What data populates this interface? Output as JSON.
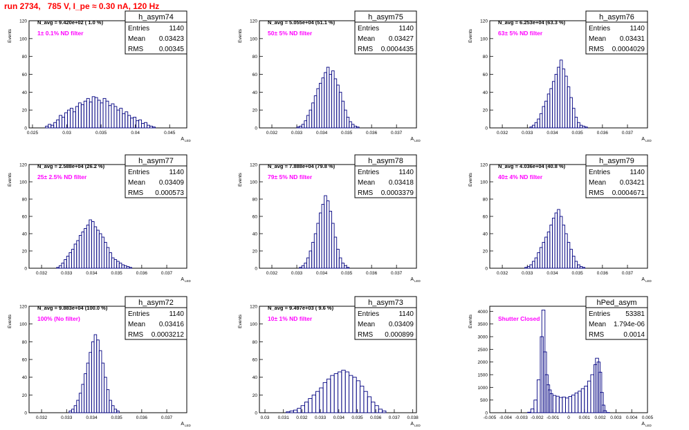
{
  "page": {
    "title": "run 2734,   785 V, I_pe ≈ 0.30 nA, 120 Hz",
    "accent_color": "#ff0000",
    "label_color": "#ff00ff",
    "hist_color": "#000080"
  },
  "chart_data": [
    {
      "type": "histogram",
      "name": "h_asym74",
      "ylabel": "Events",
      "xlabel": "A",
      "xlabel_sub": "LED",
      "ylim": [
        0,
        120
      ],
      "yticks": [
        0,
        20,
        40,
        60,
        80,
        100,
        120
      ],
      "xlim": [
        0.0245,
        0.0475
      ],
      "xticks": [
        0.025,
        0.03,
        0.035,
        0.04,
        0.045
      ],
      "xtick_labels": [
        "0.025",
        "0.03",
        "0.035",
        "0.04",
        "0.045"
      ],
      "navg": "N_avg = 9.420e+02 ( 1.0 %)",
      "filter": "1± 0.1% ND filter",
      "stats": [
        [
          "Entries",
          "1140"
        ],
        [
          "Mean",
          "0.03423"
        ],
        [
          "RMS",
          "0.00345"
        ]
      ],
      "x": [
        0.0271,
        0.0275,
        0.0279,
        0.0283,
        0.0287,
        0.0291,
        0.0295,
        0.0299,
        0.0303,
        0.0307,
        0.0311,
        0.0315,
        0.0319,
        0.0323,
        0.0327,
        0.0331,
        0.0335,
        0.0339,
        0.0343,
        0.0347,
        0.0351,
        0.0355,
        0.0359,
        0.0363,
        0.0367,
        0.0371,
        0.0375,
        0.0379,
        0.0383,
        0.0387,
        0.0391,
        0.0395,
        0.0399,
        0.0403,
        0.0407,
        0.0411,
        0.0415,
        0.0419,
        0.0423,
        0.0427
      ],
      "values": [
        2,
        4,
        3,
        6,
        9,
        14,
        12,
        17,
        20,
        22,
        18,
        24,
        28,
        26,
        30,
        33,
        29,
        35,
        34,
        31,
        28,
        33,
        30,
        25,
        27,
        24,
        20,
        22,
        16,
        18,
        14,
        11,
        12,
        8,
        9,
        5,
        6,
        3,
        2,
        1
      ]
    },
    {
      "type": "histogram",
      "name": "h_asym75",
      "ylabel": "Events",
      "xlabel": "A",
      "xlabel_sub": "LED",
      "ylim": [
        0,
        120
      ],
      "yticks": [
        0,
        20,
        40,
        60,
        80,
        100,
        120
      ],
      "xlim": [
        0.0315,
        0.0378
      ],
      "xticks": [
        0.032,
        0.033,
        0.034,
        0.035,
        0.036,
        0.037
      ],
      "xtick_labels": [
        "0.032",
        "0.033",
        "0.034",
        "0.035",
        "0.036",
        "0.037"
      ],
      "navg": "N_avg = 5.055e+04 (51.1 %)",
      "filter": "50± 5% ND filter",
      "stats": [
        [
          "Entries",
          "1140"
        ],
        [
          "Mean",
          "0.03427"
        ],
        [
          "RMS",
          "0.0004435"
        ]
      ],
      "x": [
        0.03305,
        0.03315,
        0.03325,
        0.03335,
        0.03345,
        0.03355,
        0.03365,
        0.03375,
        0.03385,
        0.03395,
        0.03405,
        0.03415,
        0.03425,
        0.03435,
        0.03445,
        0.03455,
        0.03465,
        0.03475,
        0.03485,
        0.03495,
        0.03505,
        0.03515,
        0.03525,
        0.03535,
        0.03545
      ],
      "values": [
        1,
        2,
        4,
        8,
        14,
        20,
        28,
        36,
        44,
        50,
        56,
        62,
        68,
        60,
        64,
        55,
        48,
        40,
        30,
        20,
        12,
        7,
        4,
        2,
        1
      ]
    },
    {
      "type": "histogram",
      "name": "h_asym76",
      "ylabel": "Events",
      "xlabel": "A",
      "xlabel_sub": "LED",
      "ylim": [
        0,
        120
      ],
      "yticks": [
        0,
        20,
        40,
        60,
        80,
        100,
        120
      ],
      "xlim": [
        0.0315,
        0.0378
      ],
      "xticks": [
        0.032,
        0.033,
        0.034,
        0.035,
        0.036,
        0.037
      ],
      "xtick_labels": [
        "0.032",
        "0.033",
        "0.034",
        "0.035",
        "0.036",
        "0.037"
      ],
      "navg": "N_avg = 6.253e+04 (63.3 %)",
      "filter": "63± 5% ND filter",
      "stats": [
        [
          "Entries",
          "1140"
        ],
        [
          "Mean",
          "0.03431"
        ],
        [
          "RMS",
          "0.0004029"
        ]
      ],
      "x": [
        0.03315,
        0.03325,
        0.03335,
        0.03345,
        0.03355,
        0.03365,
        0.03375,
        0.03385,
        0.03395,
        0.03405,
        0.03415,
        0.03425,
        0.03435,
        0.03445,
        0.03455,
        0.03465,
        0.03475,
        0.03485,
        0.03495,
        0.03505,
        0.03515,
        0.03525,
        0.03535
      ],
      "values": [
        1,
        3,
        6,
        10,
        16,
        24,
        30,
        38,
        44,
        52,
        60,
        68,
        76,
        66,
        58,
        46,
        34,
        22,
        12,
        6,
        3,
        2,
        1
      ]
    },
    {
      "type": "histogram",
      "name": "h_asym77",
      "ylabel": "Events",
      "xlabel": "A",
      "xlabel_sub": "LED",
      "ylim": [
        0,
        120
      ],
      "yticks": [
        0,
        20,
        40,
        60,
        80,
        100,
        120
      ],
      "xlim": [
        0.0315,
        0.0378
      ],
      "xticks": [
        0.032,
        0.033,
        0.034,
        0.035,
        0.036,
        0.037
      ],
      "xtick_labels": [
        "0.032",
        "0.033",
        "0.034",
        "0.035",
        "0.036",
        "0.037"
      ],
      "navg": "N_avg = 2.588e+04 (26.2 %)",
      "filter": "25± 2.5% ND filter",
      "stats": [
        [
          "Entries",
          "1140"
        ],
        [
          "Mean",
          "0.03409"
        ],
        [
          "RMS",
          "0.000573"
        ]
      ],
      "x": [
        0.03265,
        0.03275,
        0.03285,
        0.03295,
        0.03305,
        0.03315,
        0.03325,
        0.03335,
        0.03345,
        0.03355,
        0.03365,
        0.03375,
        0.03385,
        0.03395,
        0.03405,
        0.03415,
        0.03425,
        0.03435,
        0.03445,
        0.03455,
        0.03465,
        0.03475,
        0.03485,
        0.03495,
        0.03505,
        0.03515,
        0.03525,
        0.03535,
        0.03545,
        0.03555
      ],
      "values": [
        1,
        3,
        6,
        10,
        14,
        18,
        22,
        28,
        32,
        38,
        42,
        46,
        50,
        56,
        54,
        48,
        44,
        40,
        36,
        30,
        24,
        18,
        12,
        10,
        8,
        6,
        4,
        3,
        2,
        1
      ]
    },
    {
      "type": "histogram",
      "name": "h_asym78",
      "ylabel": "Events",
      "xlabel": "A",
      "xlabel_sub": "LED",
      "ylim": [
        0,
        120
      ],
      "yticks": [
        0,
        20,
        40,
        60,
        80,
        100,
        120
      ],
      "xlim": [
        0.0315,
        0.0378
      ],
      "xticks": [
        0.032,
        0.033,
        0.034,
        0.035,
        0.036,
        0.037
      ],
      "xtick_labels": [
        "0.032",
        "0.033",
        "0.034",
        "0.035",
        "0.036",
        "0.037"
      ],
      "navg": "N_avg = 7.888e+04 (79.8 %)",
      "filter": "79± 5% ND filter",
      "stats": [
        [
          "Entries",
          "1140"
        ],
        [
          "Mean",
          "0.03418"
        ],
        [
          "RMS",
          "0.0003379"
        ]
      ],
      "x": [
        0.03315,
        0.03325,
        0.03335,
        0.03345,
        0.03355,
        0.03365,
        0.03375,
        0.03385,
        0.03395,
        0.03405,
        0.03415,
        0.03425,
        0.03435,
        0.03445,
        0.03455,
        0.03465,
        0.03475,
        0.03485,
        0.03495,
        0.03505
      ],
      "values": [
        1,
        3,
        6,
        12,
        20,
        30,
        40,
        52,
        64,
        74,
        84,
        78,
        66,
        52,
        36,
        22,
        12,
        6,
        3,
        1
      ]
    },
    {
      "type": "histogram",
      "name": "h_asym79",
      "ylabel": "Events",
      "xlabel": "A",
      "xlabel_sub": "LED",
      "ylim": [
        0,
        120
      ],
      "yticks": [
        0,
        20,
        40,
        60,
        80,
        100,
        120
      ],
      "xlim": [
        0.0315,
        0.0378
      ],
      "xticks": [
        0.032,
        0.033,
        0.034,
        0.035,
        0.036,
        0.037
      ],
      "xtick_labels": [
        "0.032",
        "0.033",
        "0.034",
        "0.035",
        "0.036",
        "0.037"
      ],
      "navg": "N_avg = 4.036e+04 (40.8 %)",
      "filter": "40± 4% ND filter",
      "stats": [
        [
          "Entries",
          "1140"
        ],
        [
          "Mean",
          "0.03421"
        ],
        [
          "RMS",
          "0.0004671"
        ]
      ],
      "x": [
        0.03295,
        0.03305,
        0.03315,
        0.03325,
        0.03335,
        0.03345,
        0.03355,
        0.03365,
        0.03375,
        0.03385,
        0.03395,
        0.03405,
        0.03415,
        0.03425,
        0.03435,
        0.03445,
        0.03455,
        0.03465,
        0.03475,
        0.03485,
        0.03495,
        0.03505,
        0.03515,
        0.03525
      ],
      "values": [
        1,
        2,
        4,
        8,
        12,
        18,
        24,
        30,
        36,
        42,
        50,
        58,
        64,
        68,
        60,
        50,
        40,
        30,
        22,
        14,
        8,
        4,
        2,
        1
      ]
    },
    {
      "type": "histogram",
      "name": "h_asym72",
      "ylabel": "Events",
      "xlabel": "A",
      "xlabel_sub": "LED",
      "ylim": [
        0,
        120
      ],
      "yticks": [
        0,
        20,
        40,
        60,
        80,
        100,
        120
      ],
      "xlim": [
        0.0315,
        0.0378
      ],
      "xticks": [
        0.032,
        0.033,
        0.034,
        0.035,
        0.036,
        0.037
      ],
      "xtick_labels": [
        "0.032",
        "0.033",
        "0.034",
        "0.035",
        "0.036",
        "0.037"
      ],
      "navg": "N_avg = 9.883e+04 (100.0 %)",
      "filter": "100% (No filter)",
      "stats": [
        [
          "Entries",
          "1140"
        ],
        [
          "Mean",
          "0.03416"
        ],
        [
          "RMS",
          "0.0003212"
        ]
      ],
      "x": [
        0.03315,
        0.03325,
        0.03335,
        0.03345,
        0.03355,
        0.03365,
        0.03375,
        0.03385,
        0.03395,
        0.03405,
        0.03415,
        0.03425,
        0.03435,
        0.03445,
        0.03455,
        0.03465,
        0.03475,
        0.03485,
        0.03495,
        0.03505
      ],
      "values": [
        2,
        4,
        8,
        14,
        22,
        32,
        44,
        56,
        68,
        80,
        88,
        82,
        70,
        56,
        40,
        26,
        14,
        8,
        4,
        2
      ]
    },
    {
      "type": "histogram",
      "name": "h_asym73",
      "ylabel": "Events",
      "xlabel": "A",
      "xlabel_sub": "LED",
      "ylim": [
        0,
        120
      ],
      "yticks": [
        0,
        20,
        40,
        60,
        80,
        100,
        120
      ],
      "xlim": [
        0.0297,
        0.0382
      ],
      "xticks": [
        0.03,
        0.031,
        0.032,
        0.033,
        0.034,
        0.035,
        0.036,
        0.037,
        0.038
      ],
      "xtick_labels": [
        "0.03",
        "0.031",
        "0.032",
        "0.033",
        "0.034",
        "0.035",
        "0.036",
        "0.037",
        "0.038"
      ],
      "navg": "N_avg = 9.497e+03 ( 9.6 %)",
      "filter": "10± 1% ND filter",
      "stats": [
        [
          "Entries",
          "1140"
        ],
        [
          "Mean",
          "0.03409"
        ],
        [
          "RMS",
          "0.000899"
        ]
      ],
      "x": [
        0.03125,
        0.03145,
        0.03165,
        0.03185,
        0.03205,
        0.03225,
        0.03245,
        0.03265,
        0.03285,
        0.03305,
        0.03325,
        0.03345,
        0.03365,
        0.03385,
        0.03405,
        0.03425,
        0.03445,
        0.03465,
        0.03485,
        0.03505,
        0.03525,
        0.03545,
        0.03565,
        0.03585,
        0.03605,
        0.03625,
        0.03645
      ],
      "values": [
        1,
        2,
        3,
        5,
        8,
        12,
        16,
        20,
        24,
        28,
        34,
        38,
        42,
        44,
        46,
        48,
        46,
        42,
        40,
        36,
        30,
        24,
        18,
        12,
        8,
        4,
        2
      ]
    },
    {
      "type": "histogram",
      "name": "hPed_asym",
      "ylabel": "Events",
      "xlabel": "A",
      "xlabel_sub": "LED",
      "ylim": [
        0,
        4200
      ],
      "yticks": [
        0,
        500,
        1000,
        1500,
        2000,
        2500,
        3000,
        3500,
        4000
      ],
      "xlim": [
        -0.005,
        0.005
      ],
      "xticks": [
        -0.005,
        -0.004,
        -0.003,
        -0.002,
        -0.001,
        0,
        0.001,
        0.002,
        0.003,
        0.004,
        0.005
      ],
      "xtick_labels": [
        "-0.005",
        "-0.004",
        "-0.003",
        "-0.002",
        "-0.001",
        "0",
        "0.001",
        "0.002",
        "0.003",
        "0.004",
        "0.005"
      ],
      "filter": "Shutter Closed",
      "stats": [
        [
          "Entries",
          "53381"
        ],
        [
          "Mean",
          "1.794e-06"
        ],
        [
          "RMS",
          "0.0014"
        ]
      ],
      "x": [
        -0.0025,
        -0.0023,
        -0.0021,
        -0.0019,
        -0.0017,
        -0.0016,
        -0.0015,
        -0.0014,
        -0.0013,
        -0.0012,
        -0.0011,
        -0.0009,
        -0.0007,
        -0.0005,
        -0.0003,
        -0.0001,
        0.0001,
        0.0003,
        0.0005,
        0.0007,
        0.0009,
        0.0011,
        0.0013,
        0.0015,
        0.0017,
        0.0018,
        0.0019,
        0.002,
        0.0021,
        0.0022,
        0.0023,
        0.0025
      ],
      "values": [
        20,
        150,
        500,
        1300,
        3000,
        4050,
        2400,
        1500,
        1100,
        900,
        750,
        680,
        650,
        600,
        620,
        580,
        640,
        700,
        780,
        850,
        950,
        1050,
        1250,
        1500,
        1900,
        2150,
        2000,
        1600,
        800,
        300,
        80,
        10
      ]
    }
  ]
}
